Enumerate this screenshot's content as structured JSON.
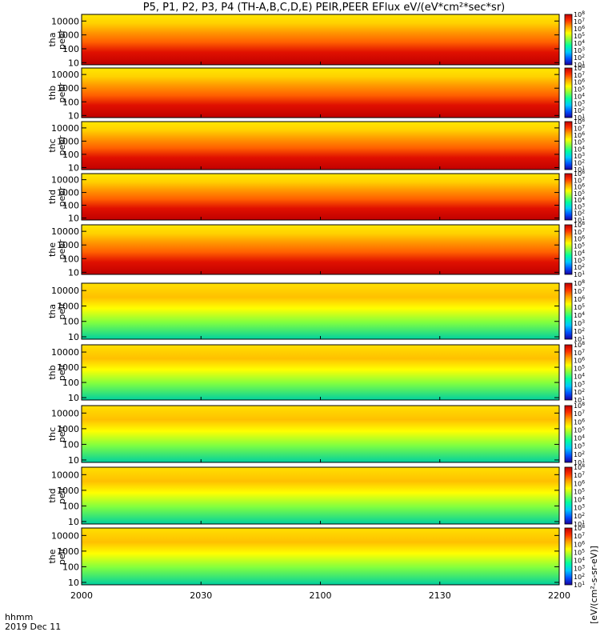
{
  "chart_data": {
    "type": "heatmap",
    "title": "P5, P1, P2, P3, P4 (TH-A,B,C,D,E) PEIR,PEER EFlux eV/(eV*cm²*sec*sr)",
    "date_label": "2019 Dec 11",
    "time_label": "hhmm",
    "x_ticks": [
      "2000",
      "2030",
      "2100",
      "2130",
      "2200"
    ],
    "y_scale": "log",
    "y_range": [
      7,
      30000
    ],
    "y_ticks": [
      "10",
      "100",
      "1000",
      "10000"
    ],
    "colorbar_tick_exponents": [
      "8",
      "7",
      "6",
      "5",
      "4",
      "3",
      "2",
      "1"
    ],
    "colorbar_label": "[eV/(cm²-s-sr-eV)]",
    "colormap": [
      "#1a00a0",
      "#0050ff",
      "#00c8ff",
      "#00ffa0",
      "#80ff40",
      "#ffff00",
      "#ffa000",
      "#ff3000",
      "#c00000"
    ],
    "series": [
      {
        "name": "tha peer",
        "probe": "tha",
        "type": "peer"
      },
      {
        "name": "thb peer",
        "probe": "thb",
        "type": "peer"
      },
      {
        "name": "thc peer",
        "probe": "thc",
        "type": "peer"
      },
      {
        "name": "thd peer",
        "probe": "thd",
        "type": "peer"
      },
      {
        "name": "the peer",
        "probe": "the",
        "type": "peer"
      },
      {
        "name": "tha peir",
        "probe": "tha",
        "type": "peir"
      },
      {
        "name": "thb peir",
        "probe": "thb",
        "type": "peir"
      },
      {
        "name": "thc peir",
        "probe": "thc",
        "type": "peir"
      },
      {
        "name": "thd peir",
        "probe": "thd",
        "type": "peir"
      },
      {
        "name": "the peir",
        "probe": "the",
        "type": "peir"
      }
    ]
  }
}
